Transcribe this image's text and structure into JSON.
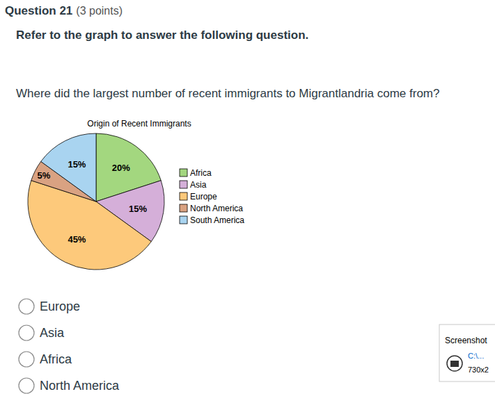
{
  "question": {
    "title": "Question 21",
    "points": "(3 points)",
    "instruction": "Refer to the graph to answer the following question.",
    "prompt": "Where did the largest number of recent immigrants to Migrantlandria come from?",
    "options": [
      "Europe",
      "Asia",
      "Africa",
      "North America"
    ]
  },
  "chart_data": {
    "type": "pie",
    "title": "Origin of Recent Immigrants",
    "categories": [
      "Africa",
      "Asia",
      "Europe",
      "North America",
      "South America"
    ],
    "values": [
      20,
      15,
      45,
      5,
      15
    ],
    "value_labels": [
      "20%",
      "15%",
      "45%",
      "5%",
      "15%"
    ],
    "colors": [
      "#a3d77f",
      "#d5afd9",
      "#fdc97b",
      "#d9a282",
      "#a9d4f0"
    ],
    "data_labels": true,
    "legend": "right"
  },
  "notification": {
    "title": "Screenshot",
    "path": "C:\\...",
    "size": "730x2"
  }
}
